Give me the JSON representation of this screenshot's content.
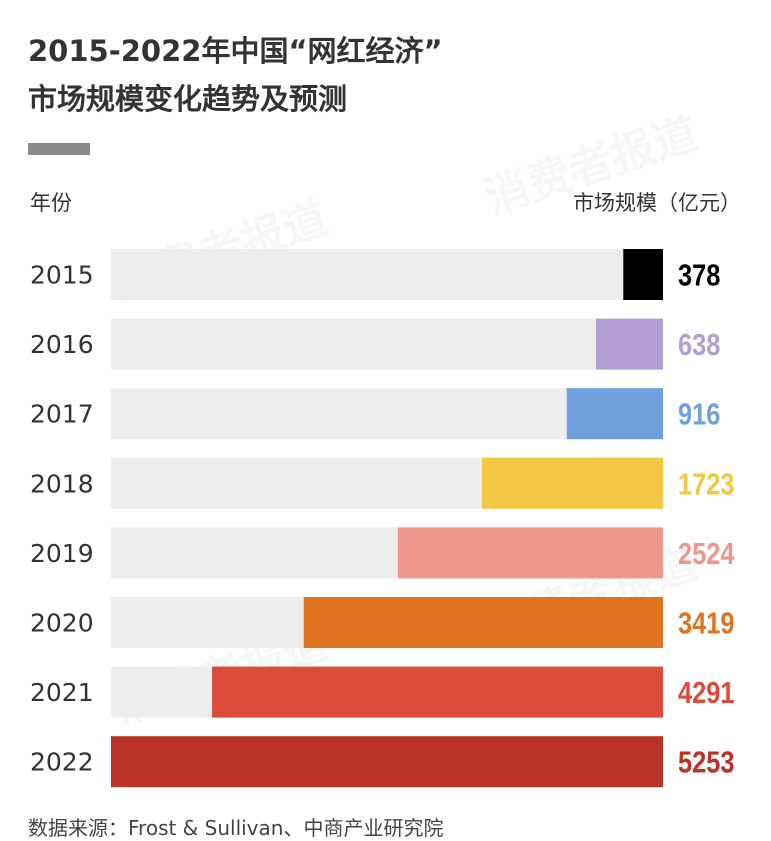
{
  "watermark": "消费者报道",
  "chart_data": {
    "type": "bar",
    "orientation": "horizontal",
    "title": "2015-2022年中国“网红经济”",
    "subtitle": "市场规模变化趋势及预测",
    "ylabel": "年份",
    "xlabel": "市场规模（亿元）",
    "categories": [
      "2015",
      "2016",
      "2017",
      "2018",
      "2019",
      "2020",
      "2021",
      "2022"
    ],
    "values": [
      378,
      638,
      916,
      1723,
      2524,
      3419,
      4291,
      5253
    ],
    "colors": [
      "#000000",
      "#b39fd3",
      "#6f9fdc",
      "#f1c744",
      "#ef968b",
      "#e0731f",
      "#dc4a3c",
      "#b83325"
    ],
    "track_color": "#ededee",
    "xlim": [
      0,
      5253
    ],
    "grid": false,
    "legend": "none",
    "source": "数据来源：Frost & Sullivan、中商产业研究院"
  }
}
